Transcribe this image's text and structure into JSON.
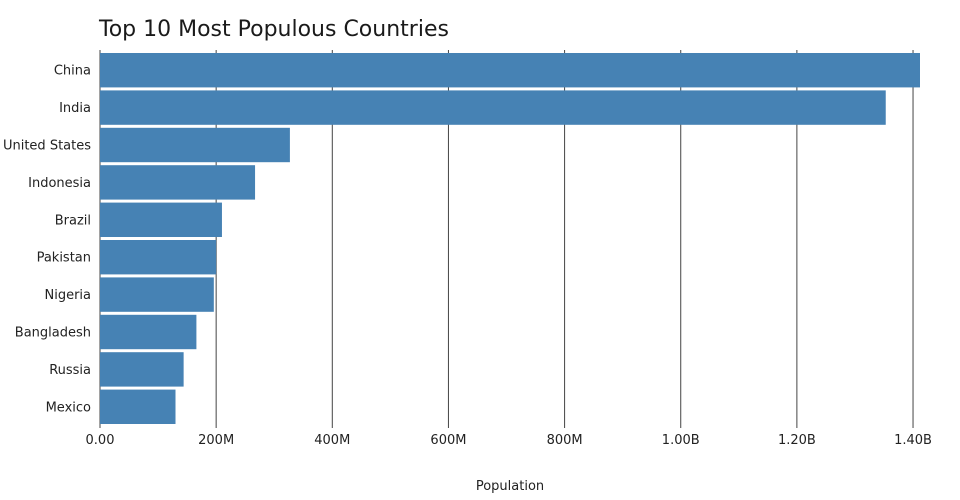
{
  "chart_data": {
    "type": "bar",
    "orientation": "horizontal",
    "title": "Top 10 Most Populous Countries",
    "xlabel": "Population",
    "ylabel": "",
    "categories": [
      "China",
      "India",
      "United States",
      "Indonesia",
      "Brazil",
      "Pakistan",
      "Nigeria",
      "Bangladesh",
      "Russia",
      "Mexico"
    ],
    "values": [
      1412000000,
      1353000000,
      327000000,
      267000000,
      210000000,
      200000000,
      196000000,
      166000000,
      144000000,
      130000000
    ],
    "xlim": [
      0,
      1412000000
    ],
    "xticks": [
      0,
      200000000,
      400000000,
      600000000,
      800000000,
      1000000000,
      1200000000,
      1400000000
    ],
    "xtick_labels": [
      "0.00",
      "200M",
      "400M",
      "600M",
      "800M",
      "1.00B",
      "1.20B",
      "1.40B"
    ],
    "grid": "vertical",
    "legend": "none",
    "bar_color": "#4682b4"
  }
}
